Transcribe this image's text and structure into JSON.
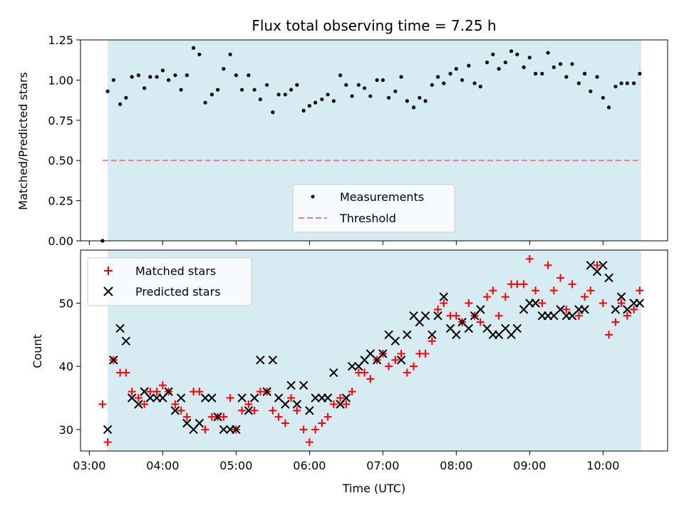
{
  "chart_data": {
    "type": "scatter",
    "title": "Flux total observing time = 7.25 h",
    "xlabel": "Time (UTC)",
    "x_ticks": [
      "03:00",
      "04:00",
      "05:00",
      "06:00",
      "07:00",
      "08:00",
      "09:00",
      "10:00"
    ],
    "xlim": [
      2.88,
      10.88
    ],
    "shaded_span": [
      3.25,
      10.52
    ],
    "colors": {
      "shade": "#add8e6",
      "measurements": "#000000",
      "threshold": "#f08080",
      "matched": "#ff0000",
      "predicted": "#000000"
    },
    "top_panel": {
      "ylabel": "Matched/Predicted stars",
      "ylim": [
        0,
        1.25
      ],
      "y_ticks": [
        "0.00",
        "0.25",
        "0.50",
        "0.75",
        "1.00",
        "1.25"
      ],
      "y_tick_values": [
        0,
        0.25,
        0.5,
        0.75,
        1.0,
        1.25
      ],
      "threshold": 0.5,
      "threshold_span": [
        3.18,
        10.52
      ],
      "legend": {
        "position": "lower-center",
        "measurements": "Measurements",
        "threshold": "Threshold"
      },
      "measurements": [
        [
          3.18,
          0.0
        ],
        [
          3.25,
          0.93
        ],
        [
          3.33,
          1.0
        ],
        [
          3.42,
          0.85
        ],
        [
          3.5,
          0.89
        ],
        [
          3.58,
          1.02
        ],
        [
          3.67,
          1.03
        ],
        [
          3.75,
          0.95
        ],
        [
          3.83,
          1.02
        ],
        [
          3.92,
          1.02
        ],
        [
          4.0,
          1.06
        ],
        [
          4.08,
          1.0
        ],
        [
          4.17,
          1.03
        ],
        [
          4.25,
          0.94
        ],
        [
          4.33,
          1.03
        ],
        [
          4.42,
          1.2
        ],
        [
          4.5,
          1.16
        ],
        [
          4.58,
          0.86
        ],
        [
          4.67,
          0.91
        ],
        [
          4.75,
          0.94
        ],
        [
          4.83,
          1.07
        ],
        [
          4.92,
          1.16
        ],
        [
          5.0,
          1.03
        ],
        [
          5.08,
          0.94
        ],
        [
          5.17,
          1.03
        ],
        [
          5.25,
          0.94
        ],
        [
          5.33,
          0.88
        ],
        [
          5.42,
          0.97
        ],
        [
          5.5,
          0.8
        ],
        [
          5.58,
          0.91
        ],
        [
          5.67,
          0.91
        ],
        [
          5.75,
          0.94
        ],
        [
          5.83,
          0.97
        ],
        [
          5.92,
          0.81
        ],
        [
          6.0,
          0.84
        ],
        [
          6.08,
          0.86
        ],
        [
          6.17,
          0.88
        ],
        [
          6.25,
          0.91
        ],
        [
          6.33,
          0.87
        ],
        [
          6.42,
          1.03
        ],
        [
          6.5,
          0.97
        ],
        [
          6.58,
          0.9
        ],
        [
          6.67,
          0.97
        ],
        [
          6.75,
          0.95
        ],
        [
          6.83,
          0.9
        ],
        [
          6.92,
          1.0
        ],
        [
          7.0,
          1.0
        ],
        [
          7.08,
          0.89
        ],
        [
          7.17,
          0.93
        ],
        [
          7.25,
          1.02
        ],
        [
          7.33,
          0.87
        ],
        [
          7.42,
          0.83
        ],
        [
          7.5,
          0.89
        ],
        [
          7.58,
          0.87
        ],
        [
          7.67,
          0.97
        ],
        [
          7.75,
          1.02
        ],
        [
          7.83,
          0.98
        ],
        [
          7.92,
          1.04
        ],
        [
          8.0,
          1.07
        ],
        [
          8.08,
          1.0
        ],
        [
          8.17,
          1.09
        ],
        [
          8.25,
          0.98
        ],
        [
          8.33,
          0.96
        ],
        [
          8.42,
          1.11
        ],
        [
          8.5,
          1.16
        ],
        [
          8.58,
          1.07
        ],
        [
          8.67,
          1.11
        ],
        [
          8.75,
          1.18
        ],
        [
          8.83,
          1.16
        ],
        [
          8.92,
          1.08
        ],
        [
          9.0,
          1.14
        ],
        [
          9.08,
          1.04
        ],
        [
          9.17,
          1.04
        ],
        [
          9.25,
          1.17
        ],
        [
          9.33,
          1.08
        ],
        [
          9.42,
          1.1
        ],
        [
          9.5,
          1.02
        ],
        [
          9.58,
          1.1
        ],
        [
          9.67,
          0.98
        ],
        [
          9.75,
          1.04
        ],
        [
          9.83,
          0.93
        ],
        [
          9.92,
          1.02
        ],
        [
          10.0,
          0.89
        ],
        [
          10.08,
          0.83
        ],
        [
          10.17,
          0.96
        ],
        [
          10.25,
          0.98
        ],
        [
          10.33,
          0.98
        ],
        [
          10.42,
          0.98
        ],
        [
          10.5,
          1.04
        ]
      ]
    },
    "bottom_panel": {
      "ylabel": "Count",
      "ylim": [
        26.6,
        58.4
      ],
      "y_ticks": [
        "30",
        "40",
        "50"
      ],
      "y_tick_values": [
        30,
        40,
        50
      ],
      "legend": {
        "position": "upper-left",
        "matched": "Matched stars",
        "predicted": "Predicted stars"
      },
      "series": [
        {
          "name": "Matched stars",
          "marker": "plus",
          "points": [
            [
              3.18,
              34
            ],
            [
              3.25,
              28
            ],
            [
              3.33,
              41
            ],
            [
              3.42,
              39
            ],
            [
              3.5,
              39
            ],
            [
              3.58,
              36
            ],
            [
              3.67,
              35
            ],
            [
              3.75,
              34
            ],
            [
              3.83,
              36
            ],
            [
              3.92,
              36
            ],
            [
              4.0,
              37
            ],
            [
              4.08,
              36
            ],
            [
              4.17,
              34
            ],
            [
              4.25,
              33
            ],
            [
              4.33,
              32
            ],
            [
              4.42,
              36
            ],
            [
              4.5,
              36
            ],
            [
              4.58,
              30
            ],
            [
              4.67,
              32
            ],
            [
              4.75,
              32
            ],
            [
              4.83,
              32
            ],
            [
              4.92,
              35
            ],
            [
              5.0,
              30
            ],
            [
              5.08,
              33
            ],
            [
              5.17,
              34
            ],
            [
              5.25,
              33
            ],
            [
              5.33,
              36
            ],
            [
              5.42,
              36
            ],
            [
              5.5,
              33
            ],
            [
              5.58,
              32
            ],
            [
              5.67,
              31
            ],
            [
              5.75,
              35
            ],
            [
              5.83,
              33
            ],
            [
              5.92,
              30
            ],
            [
              6.0,
              28
            ],
            [
              6.08,
              30
            ],
            [
              6.17,
              31
            ],
            [
              6.25,
              32
            ],
            [
              6.33,
              34
            ],
            [
              6.42,
              35
            ],
            [
              6.5,
              34
            ],
            [
              6.58,
              36
            ],
            [
              6.67,
              39
            ],
            [
              6.75,
              39
            ],
            [
              6.83,
              38
            ],
            [
              6.92,
              41
            ],
            [
              7.0,
              42
            ],
            [
              7.08,
              40
            ],
            [
              7.17,
              41
            ],
            [
              7.25,
              42
            ],
            [
              7.33,
              39
            ],
            [
              7.42,
              40
            ],
            [
              7.5,
              42
            ],
            [
              7.58,
              42
            ],
            [
              7.67,
              44
            ],
            [
              7.75,
              49
            ],
            [
              7.83,
              50
            ],
            [
              7.92,
              48
            ],
            [
              8.0,
              48
            ],
            [
              8.08,
              47
            ],
            [
              8.17,
              50
            ],
            [
              8.25,
              48
            ],
            [
              8.33,
              47
            ],
            [
              8.42,
              51
            ],
            [
              8.5,
              52
            ],
            [
              8.58,
              48
            ],
            [
              8.67,
              51
            ],
            [
              8.75,
              53
            ],
            [
              8.83,
              53
            ],
            [
              8.92,
              53
            ],
            [
              9.0,
              57
            ],
            [
              9.08,
              52
            ],
            [
              9.17,
              50
            ],
            [
              9.25,
              56
            ],
            [
              9.33,
              52
            ],
            [
              9.42,
              54
            ],
            [
              9.5,
              49
            ],
            [
              9.58,
              53
            ],
            [
              9.67,
              48
            ],
            [
              9.75,
              51
            ],
            [
              9.83,
              52
            ],
            [
              9.92,
              56
            ],
            [
              10.0,
              50
            ],
            [
              10.08,
              45
            ],
            [
              10.17,
              47
            ],
            [
              10.25,
              50
            ],
            [
              10.33,
              48
            ],
            [
              10.42,
              49
            ],
            [
              10.5,
              52
            ]
          ]
        },
        {
          "name": "Predicted stars",
          "marker": "x",
          "points": [
            [
              3.25,
              30
            ],
            [
              3.33,
              41
            ],
            [
              3.42,
              46
            ],
            [
              3.5,
              44
            ],
            [
              3.58,
              35
            ],
            [
              3.67,
              34
            ],
            [
              3.75,
              36
            ],
            [
              3.83,
              35
            ],
            [
              3.92,
              35
            ],
            [
              4.0,
              35
            ],
            [
              4.08,
              36
            ],
            [
              4.17,
              33
            ],
            [
              4.25,
              35
            ],
            [
              4.33,
              31
            ],
            [
              4.42,
              30
            ],
            [
              4.5,
              31
            ],
            [
              4.58,
              35
            ],
            [
              4.67,
              35
            ],
            [
              4.75,
              32
            ],
            [
              4.83,
              30
            ],
            [
              4.92,
              30
            ],
            [
              5.0,
              30
            ],
            [
              5.08,
              35
            ],
            [
              5.17,
              33
            ],
            [
              5.25,
              35
            ],
            [
              5.33,
              41
            ],
            [
              5.42,
              36
            ],
            [
              5.5,
              41
            ],
            [
              5.58,
              35
            ],
            [
              5.67,
              34
            ],
            [
              5.75,
              37
            ],
            [
              5.83,
              34
            ],
            [
              5.92,
              37
            ],
            [
              6.0,
              33
            ],
            [
              6.08,
              35
            ],
            [
              6.17,
              35
            ],
            [
              6.25,
              35
            ],
            [
              6.33,
              39
            ],
            [
              6.42,
              34
            ],
            [
              6.5,
              35
            ],
            [
              6.58,
              40
            ],
            [
              6.67,
              40
            ],
            [
              6.75,
              41
            ],
            [
              6.83,
              42
            ],
            [
              6.92,
              41
            ],
            [
              7.0,
              42
            ],
            [
              7.08,
              45
            ],
            [
              7.17,
              44
            ],
            [
              7.25,
              41
            ],
            [
              7.33,
              45
            ],
            [
              7.42,
              48
            ],
            [
              7.5,
              47
            ],
            [
              7.58,
              48
            ],
            [
              7.67,
              45
            ],
            [
              7.75,
              48
            ],
            [
              7.83,
              51
            ],
            [
              7.92,
              46
            ],
            [
              8.0,
              45
            ],
            [
              8.08,
              47
            ],
            [
              8.17,
              46
            ],
            [
              8.25,
              48
            ],
            [
              8.33,
              49
            ],
            [
              8.42,
              46
            ],
            [
              8.5,
              45
            ],
            [
              8.58,
              45
            ],
            [
              8.67,
              46
            ],
            [
              8.75,
              45
            ],
            [
              8.83,
              46
            ],
            [
              8.92,
              49
            ],
            [
              9.0,
              50
            ],
            [
              9.08,
              50
            ],
            [
              9.17,
              48
            ],
            [
              9.25,
              48
            ],
            [
              9.33,
              48
            ],
            [
              9.42,
              49
            ],
            [
              9.5,
              48
            ],
            [
              9.58,
              48
            ],
            [
              9.67,
              49
            ],
            [
              9.75,
              49
            ],
            [
              9.83,
              56
            ],
            [
              9.92,
              55
            ],
            [
              10.0,
              56
            ],
            [
              10.08,
              54
            ],
            [
              10.17,
              49
            ],
            [
              10.25,
              51
            ],
            [
              10.33,
              49
            ],
            [
              10.42,
              50
            ],
            [
              10.5,
              50
            ]
          ]
        }
      ]
    }
  }
}
